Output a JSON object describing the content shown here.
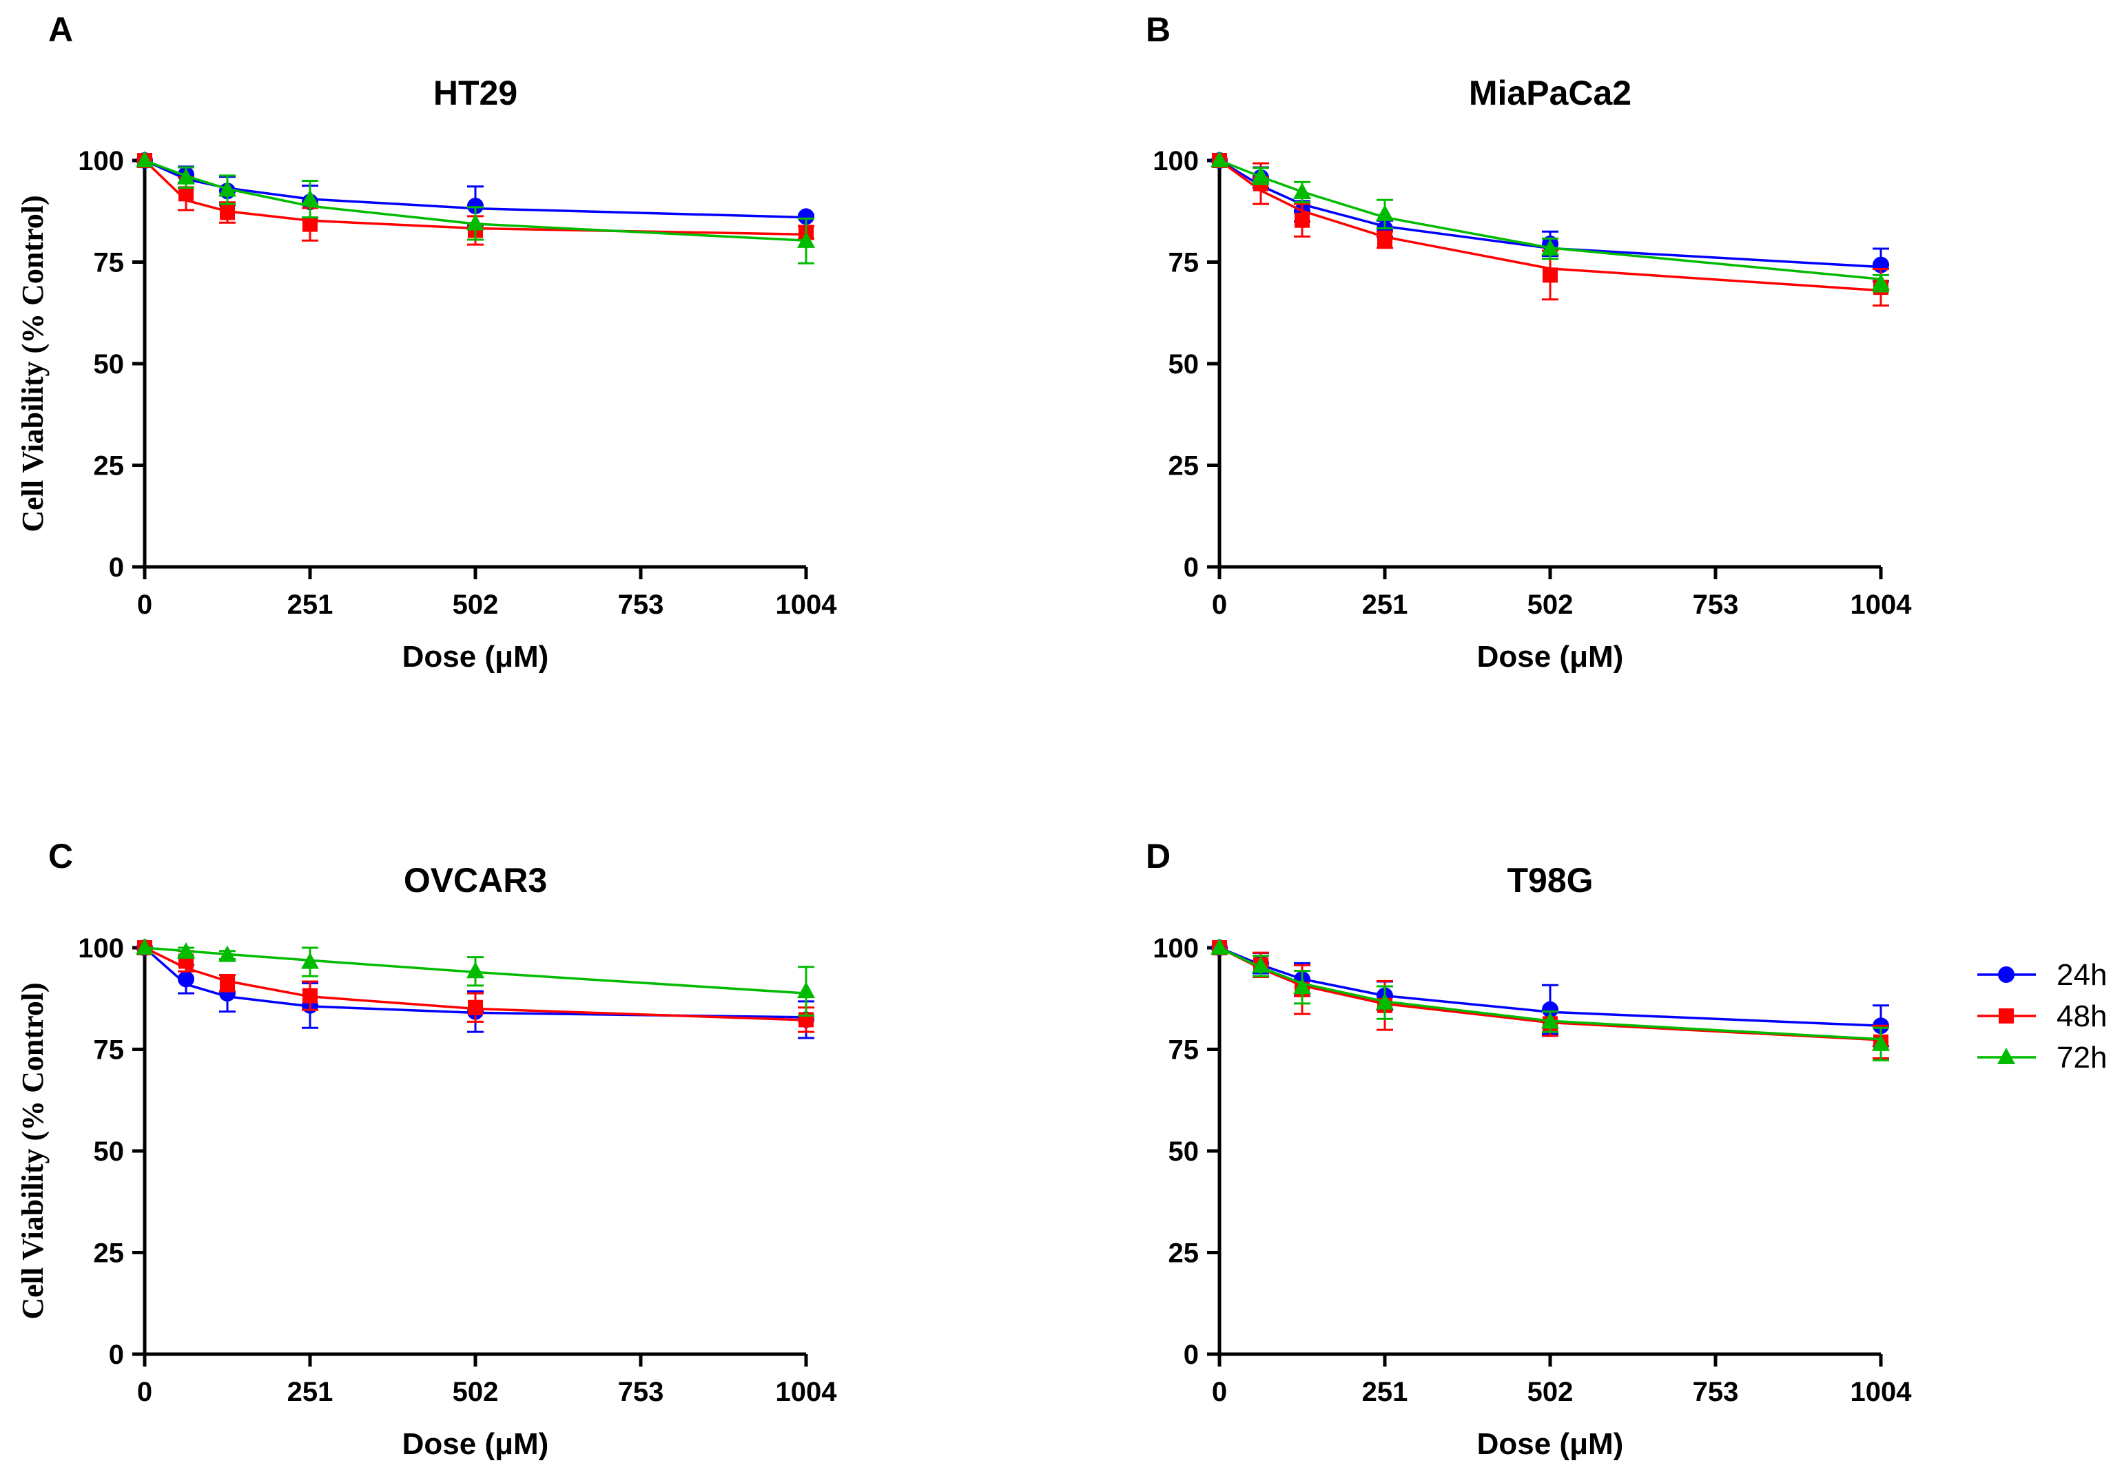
{
  "figure": {
    "legend": [
      {
        "label": "24h",
        "color": "#0000FF",
        "marker": "circle"
      },
      {
        "label": "48h",
        "color": "#FF0000",
        "marker": "square"
      },
      {
        "label": "72h",
        "color": "#00BB00",
        "marker": "triangle"
      }
    ]
  },
  "chart_data": [
    {
      "type": "line",
      "letter": "A",
      "title": "HT29",
      "xlabel": "Dose (μM)",
      "ylabel": "Cell Viability (% Control)",
      "xlim": [
        0,
        1004
      ],
      "ylim": [
        0,
        100
      ],
      "xticks": [
        0,
        251,
        502,
        753,
        1004
      ],
      "yticks": [
        0,
        25,
        50,
        75,
        100
      ],
      "x": [
        0,
        62.75,
        125.5,
        251,
        502,
        1004
      ],
      "series": [
        {
          "name": "24h",
          "color": "#0000FF",
          "marker": "circle",
          "values": [
            100,
            96.5,
            92.5,
            89.8,
            88.8,
            86.2
          ],
          "errors": [
            0,
            2,
            3.5,
            4,
            4.8,
            0.5
          ],
          "fit": [
            100,
            95.4,
            93.2,
            90.5,
            88.2,
            86.0
          ]
        },
        {
          "name": "48h",
          "color": "#FF0000",
          "marker": "square",
          "values": [
            100,
            91.8,
            87.2,
            84.3,
            82.8,
            82.3
          ],
          "errors": [
            0,
            4,
            2.5,
            4,
            3.5,
            1.5
          ],
          "fit": [
            100,
            90.2,
            87.5,
            85.2,
            83.3,
            81.8
          ]
        },
        {
          "name": "72h",
          "color": "#00BB00",
          "marker": "triangle",
          "values": [
            100,
            95.8,
            92.8,
            90.5,
            84.5,
            80.2
          ],
          "errors": [
            0,
            2.5,
            3.5,
            4.5,
            4,
            5.5
          ],
          "fit": [
            100,
            96.2,
            93.0,
            88.8,
            84.4,
            80.3
          ]
        }
      ]
    },
    {
      "type": "line",
      "letter": "B",
      "title": "MiaPaCa2",
      "xlabel": "Dose (μM)",
      "ylabel": "",
      "xlim": [
        0,
        1004
      ],
      "ylim": [
        0,
        100
      ],
      "xticks": [
        0,
        251,
        502,
        753,
        1004
      ],
      "yticks": [
        0,
        25,
        50,
        75,
        100
      ],
      "x": [
        0,
        62.75,
        125.5,
        251,
        502,
        1004
      ],
      "series": [
        {
          "name": "24h",
          "color": "#0000FF",
          "marker": "circle",
          "values": [
            100,
            95.8,
            87.5,
            83.2,
            79.5,
            74.3
          ],
          "errors": [
            0,
            2.5,
            2.5,
            2,
            3,
            4
          ],
          "fit": [
            100,
            93.8,
            89.2,
            83.8,
            78.4,
            73.8
          ]
        },
        {
          "name": "48h",
          "color": "#FF0000",
          "marker": "square",
          "values": [
            100,
            94.3,
            85.3,
            80.5,
            71.8,
            68.8
          ],
          "errors": [
            0,
            5,
            4,
            2,
            6,
            4.5
          ],
          "fit": [
            100,
            92.6,
            87.6,
            81.2,
            73.4,
            68.0
          ]
        },
        {
          "name": "72h",
          "color": "#00BB00",
          "marker": "triangle",
          "values": [
            100,
            96.2,
            92.2,
            86.8,
            78.3,
            69.8
          ],
          "errors": [
            0,
            2,
            2.5,
            3.5,
            2.5,
            2
          ],
          "fit": [
            100,
            96.0,
            92.3,
            86.0,
            78.5,
            70.8
          ]
        }
      ]
    },
    {
      "type": "line",
      "letter": "C",
      "title": "OVCAR3",
      "xlabel": "Dose (μM)",
      "ylabel": "Cell Viability (% Control)",
      "xlim": [
        0,
        1004
      ],
      "ylim": [
        0,
        100
      ],
      "xticks": [
        0,
        251,
        502,
        753,
        1004
      ],
      "yticks": [
        0,
        25,
        50,
        75,
        100
      ],
      "x": [
        0,
        62.75,
        125.5,
        251,
        502,
        1004
      ],
      "series": [
        {
          "name": "24h",
          "color": "#0000FF",
          "marker": "circle",
          "values": [
            100,
            92.3,
            88.8,
            85.8,
            84.3,
            82.3
          ],
          "errors": [
            0,
            3.5,
            4.5,
            5.5,
            5,
            4.5
          ],
          "fit": [
            100,
            91.0,
            88.0,
            85.6,
            84.0,
            82.9
          ]
        },
        {
          "name": "48h",
          "color": "#FF0000",
          "marker": "square",
          "values": [
            100,
            96.7,
            91.3,
            88.2,
            85.3,
            82.3
          ],
          "errors": [
            0,
            2.5,
            2,
            3.5,
            3.5,
            3
          ],
          "fit": [
            100,
            95.0,
            91.8,
            88.0,
            85.0,
            82.2
          ]
        },
        {
          "name": "72h",
          "color": "#00BB00",
          "marker": "triangle",
          "values": [
            100,
            99.0,
            98.2,
            96.5,
            94.2,
            89.3
          ],
          "errors": [
            0,
            1,
            1,
            3.5,
            3.5,
            6
          ],
          "fit": [
            100,
            99.2,
            98.4,
            96.9,
            94.0,
            88.8
          ]
        }
      ]
    },
    {
      "type": "line",
      "letter": "D",
      "title": "T98G",
      "xlabel": "Dose (μM)",
      "ylabel": "",
      "xlim": [
        0,
        1004
      ],
      "ylim": [
        0,
        100
      ],
      "xticks": [
        0,
        251,
        502,
        753,
        1004
      ],
      "yticks": [
        0,
        25,
        50,
        75,
        100
      ],
      "x": [
        0,
        62.75,
        125.5,
        251,
        502,
        1004
      ],
      "series": [
        {
          "name": "24h",
          "color": "#0000FF",
          "marker": "circle",
          "values": [
            100,
            96.2,
            92.2,
            88.2,
            84.8,
            80.8
          ],
          "errors": [
            0,
            2.5,
            4,
            3.5,
            6,
            5
          ],
          "fit": [
            100,
            95.8,
            92.3,
            88.2,
            84.2,
            80.8
          ]
        },
        {
          "name": "48h",
          "color": "#FF0000",
          "marker": "square",
          "values": [
            100,
            95.8,
            89.7,
            85.8,
            81.3,
            76.8
          ],
          "errors": [
            0,
            3,
            6,
            6,
            3,
            4
          ],
          "fit": [
            100,
            94.9,
            90.7,
            86.2,
            81.6,
            77.3
          ]
        },
        {
          "name": "72h",
          "color": "#00BB00",
          "marker": "triangle",
          "values": [
            100,
            95.5,
            90.3,
            86.5,
            81.8,
            76.3
          ],
          "errors": [
            0,
            2.5,
            4,
            4,
            2.5,
            4
          ],
          "fit": [
            100,
            95.2,
            91.2,
            86.8,
            82.0,
            77.5
          ]
        }
      ]
    }
  ]
}
